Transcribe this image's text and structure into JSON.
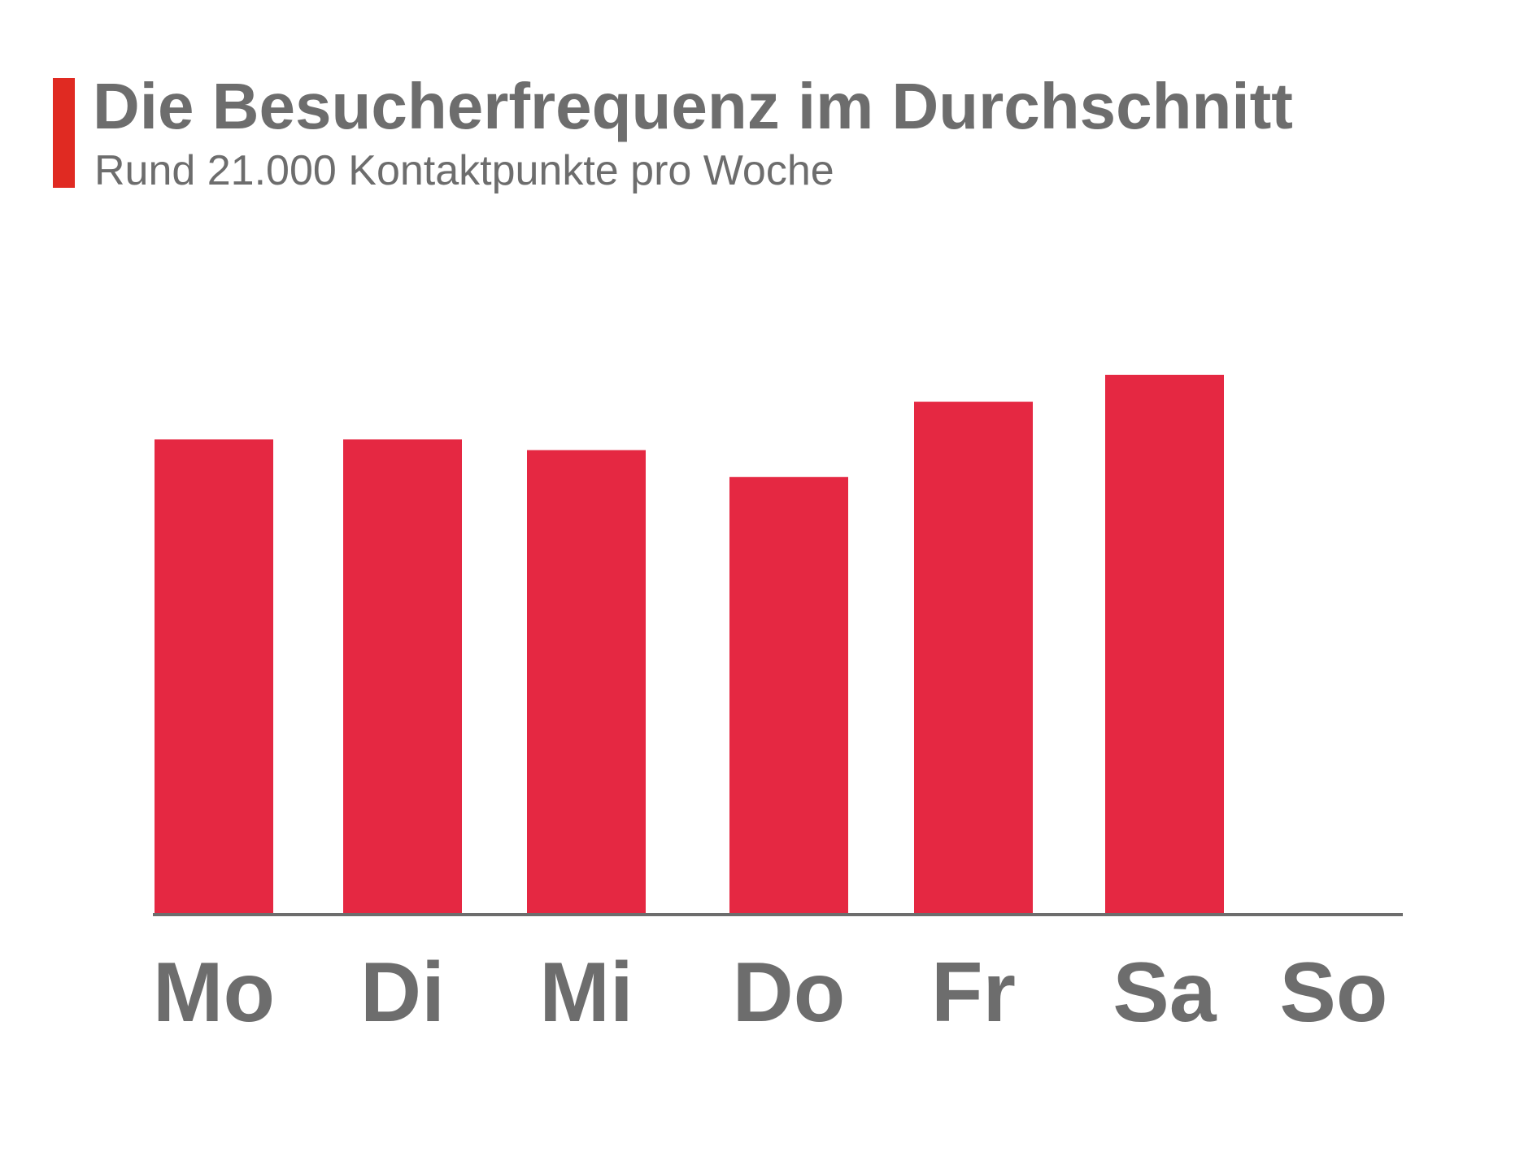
{
  "header": {
    "title": "Die Besucherfrequenz im Durchschnitt",
    "subtitle": "Rund 21.000 Kontaktpunkte pro Woche"
  },
  "colors": {
    "accent": "#e02a22",
    "bar": "#e52842",
    "text": "#6d6d6d",
    "axis": "#6d6d6d"
  },
  "chart_data": {
    "type": "bar",
    "categories": [
      "Mo",
      "Di",
      "Mi",
      "Do",
      "Fr",
      "Sa",
      "So"
    ],
    "values": [
      88,
      88,
      86,
      81,
      95,
      100,
      0
    ],
    "ylim": [
      0,
      100
    ],
    "grid": false,
    "legend": "none",
    "xlabel": "",
    "ylabel": ""
  }
}
